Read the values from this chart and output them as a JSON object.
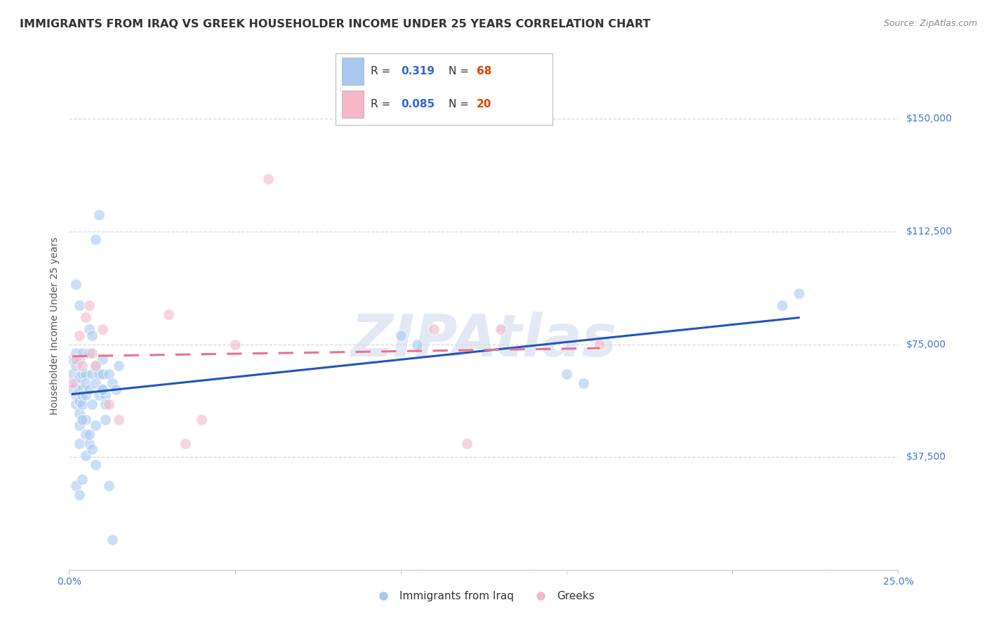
{
  "title": "IMMIGRANTS FROM IRAQ VS GREEK HOUSEHOLDER INCOME UNDER 25 YEARS CORRELATION CHART",
  "source": "Source: ZipAtlas.com",
  "ylabel": "Householder Income Under 25 years",
  "xlim": [
    0.0,
    0.25
  ],
  "ylim": [
    0,
    162500
  ],
  "x_ticks": [
    0.0,
    0.05,
    0.1,
    0.15,
    0.2,
    0.25
  ],
  "x_tick_labels": [
    "0.0%",
    "",
    "",
    "",
    "",
    "25.0%"
  ],
  "y_ticks": [
    0,
    37500,
    75000,
    112500,
    150000
  ],
  "y_tick_labels": [
    "",
    "$37,500",
    "$75,000",
    "$112,500",
    "$150,000"
  ],
  "watermark": "ZIPAtlas",
  "iraq_color": "#a8c8f0",
  "greeks_color": "#f4b8c8",
  "trendline_iraq_color": "#2255bb",
  "trendline_greeks_color": "#e87090",
  "iraq_R": 0.319,
  "iraq_N": 68,
  "greeks_R": 0.085,
  "greeks_N": 20,
  "iraq_x": [
    0.001,
    0.001,
    0.001,
    0.002,
    0.002,
    0.002,
    0.002,
    0.002,
    0.003,
    0.003,
    0.003,
    0.003,
    0.003,
    0.003,
    0.004,
    0.004,
    0.004,
    0.004,
    0.004,
    0.005,
    0.005,
    0.005,
    0.005,
    0.006,
    0.006,
    0.006,
    0.007,
    0.007,
    0.007,
    0.008,
    0.008,
    0.008,
    0.009,
    0.009,
    0.01,
    0.01,
    0.01,
    0.011,
    0.011,
    0.012,
    0.013,
    0.014,
    0.015,
    0.003,
    0.004,
    0.005,
    0.006,
    0.002,
    0.003,
    0.004,
    0.008,
    0.009,
    0.012,
    0.013,
    0.1,
    0.105,
    0.15,
    0.155,
    0.215,
    0.22,
    0.005,
    0.006,
    0.007,
    0.008,
    0.002,
    0.003,
    0.01,
    0.011
  ],
  "iraq_y": [
    60000,
    65000,
    70000,
    68000,
    62000,
    58000,
    72000,
    55000,
    60000,
    56000,
    64000,
    70000,
    52000,
    48000,
    65000,
    60000,
    58000,
    55000,
    72000,
    58000,
    65000,
    50000,
    62000,
    80000,
    72000,
    60000,
    78000,
    65000,
    55000,
    68000,
    62000,
    48000,
    65000,
    58000,
    70000,
    65000,
    60000,
    58000,
    50000,
    65000,
    62000,
    60000,
    68000,
    42000,
    50000,
    45000,
    42000,
    28000,
    25000,
    30000,
    110000,
    118000,
    28000,
    10000,
    78000,
    75000,
    65000,
    62000,
    88000,
    92000,
    38000,
    45000,
    40000,
    35000,
    95000,
    88000,
    60000,
    55000
  ],
  "greeks_x": [
    0.001,
    0.002,
    0.003,
    0.004,
    0.005,
    0.006,
    0.007,
    0.008,
    0.01,
    0.012,
    0.015,
    0.03,
    0.035,
    0.04,
    0.05,
    0.06,
    0.11,
    0.12,
    0.13,
    0.16
  ],
  "greeks_y": [
    62000,
    70000,
    78000,
    68000,
    84000,
    88000,
    72000,
    68000,
    80000,
    55000,
    50000,
    85000,
    42000,
    50000,
    75000,
    130000,
    80000,
    42000,
    80000,
    75000
  ],
  "background_color": "#ffffff",
  "grid_color": "#d8d8e0",
  "tick_color": "#4477cc",
  "title_color": "#333333",
  "title_fontsize": 11.5,
  "source_fontsize": 9,
  "ylabel_fontsize": 10,
  "tick_fontsize": 10,
  "legend_fontsize": 11,
  "watermark_color": "#ccd8ec",
  "watermark_fontsize": 60,
  "marker_size": 130,
  "marker_alpha": 0.6,
  "marker_edge_color": "white",
  "marker_edge_width": 1.0
}
